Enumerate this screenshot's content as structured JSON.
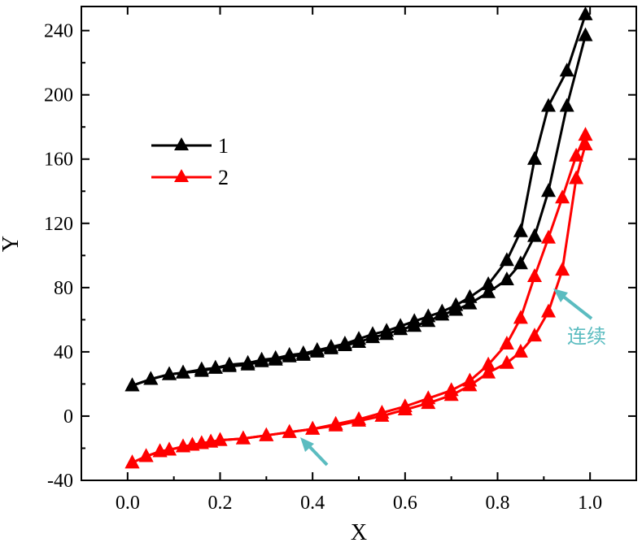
{
  "chart_data": {
    "type": "line",
    "title": "",
    "xlabel": "X",
    "ylabel": "Y",
    "xlim": [
      -0.1,
      1.1
    ],
    "ylim": [
      -40,
      255
    ],
    "xticks": [
      "0.0",
      "0.2",
      "0.4",
      "0.6",
      "0.8",
      "1.0"
    ],
    "yticks": [
      "-40",
      "0",
      "40",
      "80",
      "120",
      "160",
      "200",
      "240"
    ],
    "grid": false,
    "legend_position": "upper-left",
    "series": [
      {
        "name": "1",
        "color": "#000000",
        "marker": "triangle",
        "branches": [
          {
            "x": [
              0.01,
              0.05,
              0.09,
              0.12,
              0.16,
              0.19,
              0.22,
              0.26,
              0.29,
              0.32,
              0.35,
              0.38,
              0.41,
              0.44,
              0.47,
              0.5,
              0.53,
              0.56,
              0.59,
              0.62,
              0.65,
              0.68,
              0.71,
              0.74,
              0.78,
              0.82,
              0.85,
              0.88,
              0.91,
              0.95,
              0.99
            ],
            "y": [
              19,
              23,
              26,
              27,
              28,
              30,
              31,
              32,
              34,
              35,
              37,
              38,
              40,
              42,
              44,
              46,
              49,
              51,
              54,
              56,
              59,
              63,
              66,
              70,
              77,
              85,
              95,
              112,
              140,
              193,
              237
            ]
          },
          {
            "x": [
              0.01,
              0.05,
              0.09,
              0.12,
              0.16,
              0.19,
              0.22,
              0.26,
              0.29,
              0.32,
              0.35,
              0.38,
              0.41,
              0.44,
              0.47,
              0.5,
              0.53,
              0.56,
              0.59,
              0.62,
              0.65,
              0.68,
              0.71,
              0.74,
              0.78,
              0.82,
              0.85,
              0.88,
              0.91,
              0.95,
              0.99
            ],
            "y": [
              19,
              23,
              26,
              27,
              29,
              30,
              32,
              33,
              35,
              36,
              38,
              39,
              41,
              43,
              45,
              48,
              51,
              53,
              56,
              59,
              62,
              65,
              69,
              74,
              82,
              97,
              115,
              160,
              193,
              215,
              250
            ]
          }
        ]
      },
      {
        "name": "2",
        "color": "#ff0000",
        "marker": "triangle",
        "branches": [
          {
            "x": [
              0.01,
              0.04,
              0.07,
              0.09,
              0.12,
              0.14,
              0.16,
              0.18,
              0.2,
              0.25,
              0.3,
              0.35,
              0.4,
              0.45,
              0.5,
              0.55,
              0.6,
              0.65,
              0.7,
              0.74,
              0.78,
              0.82,
              0.85,
              0.88,
              0.91,
              0.94,
              0.97,
              0.99
            ],
            "y": [
              -29,
              -25,
              -22,
              -21,
              -19,
              -18,
              -17,
              -16,
              -15,
              -14,
              -12,
              -10,
              -8,
              -6,
              -3,
              0,
              4,
              8,
              13,
              19,
              27,
              33,
              40,
              50,
              65,
              91,
              148,
              169
            ]
          },
          {
            "x": [
              0.01,
              0.04,
              0.07,
              0.09,
              0.12,
              0.14,
              0.16,
              0.18,
              0.2,
              0.25,
              0.3,
              0.35,
              0.4,
              0.45,
              0.5,
              0.55,
              0.6,
              0.65,
              0.7,
              0.74,
              0.78,
              0.82,
              0.85,
              0.88,
              0.91,
              0.94,
              0.97,
              0.99
            ],
            "y": [
              -29,
              -25,
              -22,
              -21,
              -19,
              -18,
              -17,
              -16,
              -15,
              -14,
              -12,
              -10,
              -8,
              -5,
              -2,
              2,
              6,
              11,
              16,
              22,
              32,
              45,
              61,
              87,
              111,
              136,
              162,
              175
            ]
          }
        ]
      }
    ],
    "annotations": [
      {
        "text": "连续",
        "color": "#5bbcc0",
        "arrow_to_series": "2"
      },
      {
        "text": "",
        "color": "#5bbcc0",
        "arrow_to_series": "2"
      }
    ]
  }
}
